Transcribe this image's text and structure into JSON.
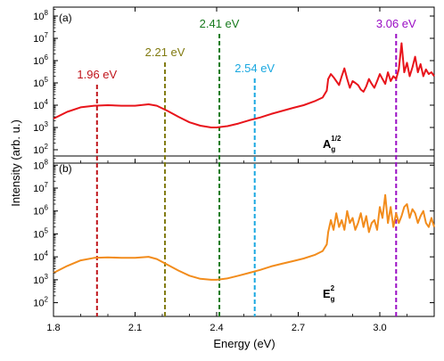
{
  "chart_data": {
    "type": "line",
    "xlabel": "Energy (eV)",
    "ylabel": "Intensity (arb. u.)",
    "xlim": [
      1.8,
      3.2
    ],
    "x_ticks": [
      "1.8",
      "2.1",
      "2.4",
      "2.7",
      "3.0"
    ],
    "y_scale": "log",
    "y_ticks": [
      {
        "base": "10",
        "exp": "2"
      },
      {
        "base": "10",
        "exp": "3"
      },
      {
        "base": "10",
        "exp": "4"
      },
      {
        "base": "10",
        "exp": "5"
      },
      {
        "base": "10",
        "exp": "6"
      },
      {
        "base": "10",
        "exp": "7"
      },
      {
        "base": "10",
        "exp": "8"
      }
    ],
    "vertical_markers": [
      {
        "x": 1.96,
        "label": "1.96 eV",
        "color": "#c0141b"
      },
      {
        "x": 2.21,
        "label": "2.21 eV",
        "color": "#807a10"
      },
      {
        "x": 2.41,
        "label": "2.41 eV",
        "color": "#177a1d"
      },
      {
        "x": 2.54,
        "label": "2.54 eV",
        "color": "#1aa8e0"
      },
      {
        "x": 3.06,
        "label": "3.06 eV",
        "color": "#9a0cc4"
      }
    ],
    "panels": [
      {
        "tag": "(a)",
        "mode_main": "A",
        "mode_sub": "g",
        "mode_sup": "1/2",
        "ylim_log10": [
          1.4,
          8.4
        ],
        "series": {
          "color": "#e8141b",
          "x": [
            1.8,
            1.85,
            1.9,
            1.95,
            2.0,
            2.05,
            2.1,
            2.15,
            2.18,
            2.22,
            2.26,
            2.3,
            2.34,
            2.38,
            2.4,
            2.44,
            2.48,
            2.52,
            2.56,
            2.6,
            2.64,
            2.68,
            2.72,
            2.76,
            2.79,
            2.805,
            2.81,
            2.82,
            2.83,
            2.84,
            2.85,
            2.86,
            2.87,
            2.88,
            2.89,
            2.9,
            2.91,
            2.92,
            2.93,
            2.94,
            2.95,
            2.96,
            2.97,
            2.98,
            2.99,
            3.0,
            3.01,
            3.02,
            3.03,
            3.04,
            3.05,
            3.06,
            3.07,
            3.08,
            3.09,
            3.1,
            3.11,
            3.12,
            3.13,
            3.14,
            3.15,
            3.16,
            3.17,
            3.18,
            3.19,
            3.2
          ],
          "y": [
            2500,
            5000,
            8000,
            9500,
            10000,
            9500,
            9500,
            11000,
            9500,
            5500,
            3000,
            1700,
            1200,
            1000,
            1000,
            1150,
            1500,
            2100,
            2800,
            4000,
            5500,
            7500,
            10000,
            15000,
            22000,
            45000,
            150000,
            250000,
            180000,
            120000,
            80000,
            200000,
            450000,
            150000,
            60000,
            120000,
            100000,
            80000,
            50000,
            40000,
            70000,
            150000,
            90000,
            60000,
            120000,
            250000,
            150000,
            90000,
            300000,
            120000,
            200000,
            150000,
            400000,
            6000000,
            300000,
            800000,
            200000,
            500000,
            1500000,
            300000,
            700000,
            200000,
            400000,
            250000,
            300000,
            200000
          ]
        }
      },
      {
        "tag": "(b)",
        "mode_main": "E",
        "mode_sub": "g",
        "mode_sup": "2",
        "ylim_log10": [
          1.4,
          8.4
        ],
        "series": {
          "color": "#f28c1c",
          "x": [
            1.8,
            1.85,
            1.9,
            1.95,
            2.0,
            2.05,
            2.1,
            2.15,
            2.18,
            2.22,
            2.26,
            2.3,
            2.34,
            2.38,
            2.4,
            2.44,
            2.48,
            2.52,
            2.56,
            2.6,
            2.64,
            2.68,
            2.72,
            2.76,
            2.79,
            2.805,
            2.81,
            2.82,
            2.83,
            2.84,
            2.85,
            2.86,
            2.87,
            2.88,
            2.89,
            2.9,
            2.91,
            2.92,
            2.93,
            2.94,
            2.95,
            2.96,
            2.97,
            2.98,
            2.99,
            3.0,
            3.01,
            3.02,
            3.03,
            3.04,
            3.05,
            3.06,
            3.07,
            3.08,
            3.09,
            3.1,
            3.11,
            3.12,
            3.13,
            3.14,
            3.15,
            3.16,
            3.17,
            3.18,
            3.19,
            3.2
          ],
          "y": [
            2000,
            4000,
            7000,
            9000,
            9500,
            9000,
            9000,
            10000,
            8000,
            4500,
            2500,
            1500,
            1100,
            1000,
            1000,
            1150,
            1500,
            2000,
            2700,
            3800,
            5000,
            6500,
            8500,
            12000,
            18000,
            35000,
            120000,
            400000,
            150000,
            800000,
            200000,
            400000,
            150000,
            1000000,
            300000,
            500000,
            150000,
            300000,
            800000,
            200000,
            600000,
            120000,
            300000,
            400000,
            150000,
            1500000,
            500000,
            5000000,
            300000,
            1500000,
            200000,
            800000,
            300000,
            600000,
            1500000,
            2000000,
            500000,
            1200000,
            800000,
            300000,
            600000,
            1000000,
            300000,
            200000,
            500000,
            200000
          ]
        }
      }
    ]
  }
}
